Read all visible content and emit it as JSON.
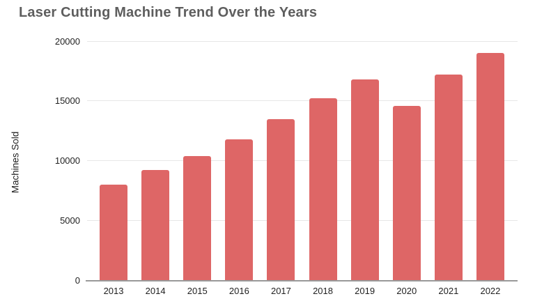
{
  "chart_data": {
    "type": "bar",
    "title": "Laser Cutting Machine Trend Over the Years",
    "xlabel": "",
    "ylabel": "Machines Sold",
    "categories": [
      "2013",
      "2014",
      "2015",
      "2016",
      "2017",
      "2018",
      "2019",
      "2020",
      "2021",
      "2022"
    ],
    "values": [
      8000,
      9200,
      10400,
      11800,
      13500,
      15200,
      16800,
      14600,
      17200,
      19000
    ],
    "yticks": [
      0,
      5000,
      10000,
      15000,
      20000
    ],
    "ylim": [
      0,
      20000
    ],
    "grid": "horizontal-on",
    "legend": "none",
    "colors": {
      "bar": "#DE6666",
      "title": "#5E5E5E",
      "tick_label": "#1F1F1F",
      "axis_title": "#1F1F1F",
      "gridline": "#E7E7E7",
      "baseline": "#999999",
      "background": "#FFFFFF"
    }
  }
}
